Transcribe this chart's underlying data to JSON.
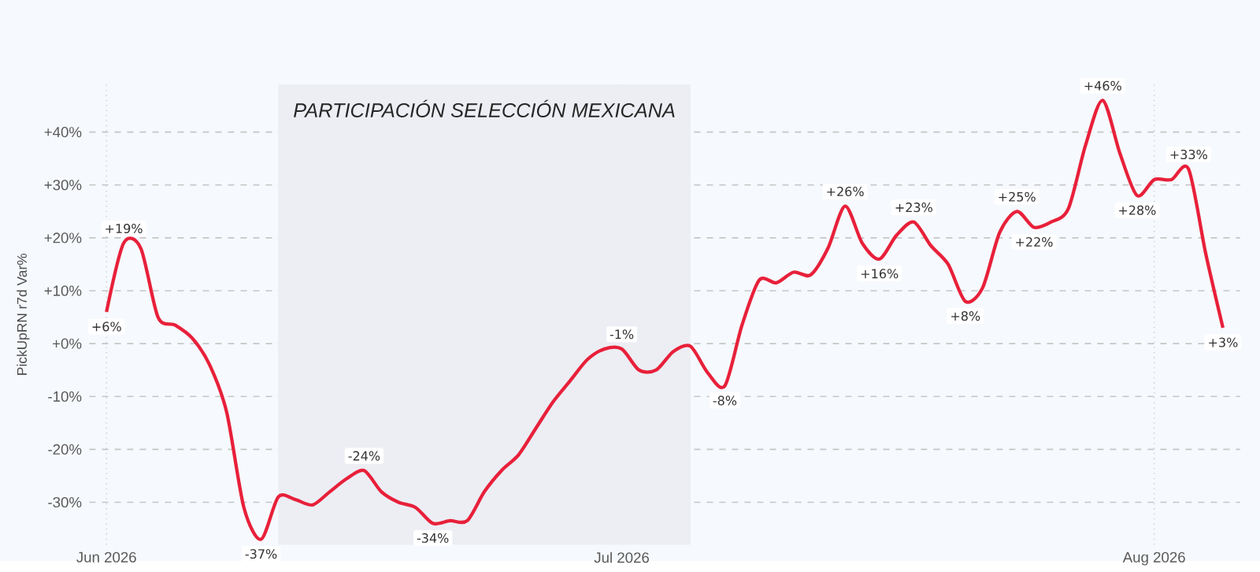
{
  "chart_data": {
    "type": "line",
    "ylabel": "PickUpRN r7d Var%",
    "x": [
      "2026-06-01",
      "2026-06-02",
      "2026-06-03",
      "2026-06-04",
      "2026-06-05",
      "2026-06-06",
      "2026-06-07",
      "2026-06-08",
      "2026-06-09",
      "2026-06-10",
      "2026-06-11",
      "2026-06-12",
      "2026-06-13",
      "2026-06-14",
      "2026-06-15",
      "2026-06-16",
      "2026-06-17",
      "2026-06-18",
      "2026-06-19",
      "2026-06-20",
      "2026-06-21",
      "2026-06-22",
      "2026-06-23",
      "2026-06-24",
      "2026-06-25",
      "2026-06-26",
      "2026-06-27",
      "2026-06-28",
      "2026-06-29",
      "2026-06-30",
      "2026-07-01",
      "2026-07-02",
      "2026-07-03",
      "2026-07-04",
      "2026-07-05",
      "2026-07-06",
      "2026-07-07",
      "2026-07-08",
      "2026-07-09",
      "2026-07-10",
      "2026-07-11",
      "2026-07-12",
      "2026-07-13",
      "2026-07-14",
      "2026-07-15",
      "2026-07-16",
      "2026-07-17",
      "2026-07-18",
      "2026-07-19",
      "2026-07-20",
      "2026-07-21",
      "2026-07-22",
      "2026-07-23",
      "2026-07-24",
      "2026-07-25",
      "2026-07-26",
      "2026-07-27",
      "2026-07-28",
      "2026-07-29",
      "2026-07-30",
      "2026-07-31",
      "2026-08-01",
      "2026-08-02",
      "2026-08-03",
      "2026-08-04",
      "2026-08-05"
    ],
    "series": [
      {
        "color": "#e8203a",
        "values": [
          6,
          19,
          18,
          5,
          3.5,
          1,
          -4,
          -13,
          -31,
          -37,
          -29,
          -29.5,
          -30.5,
          -28,
          -25.5,
          -24,
          -28,
          -30,
          -31,
          -34,
          -33.5,
          -33.5,
          -28,
          -24,
          -21,
          -16,
          -11,
          -7,
          -3,
          -1,
          -1,
          -5,
          -5,
          -1.5,
          -0.5,
          -5.5,
          -8,
          3.5,
          12,
          11.5,
          13.5,
          13,
          18,
          26,
          19,
          16,
          20.5,
          23,
          18.5,
          15,
          8,
          10.5,
          21,
          25,
          22,
          23,
          25.5,
          37.5,
          46,
          36,
          28,
          31,
          31,
          33,
          17,
          3
        ],
        "value_labels": [
          "+6%",
          "+19%",
          null,
          null,
          null,
          null,
          null,
          null,
          null,
          "-37%",
          null,
          null,
          null,
          null,
          null,
          "-24%",
          null,
          null,
          null,
          "-34%",
          null,
          null,
          null,
          null,
          null,
          null,
          null,
          null,
          null,
          null,
          "-1%",
          null,
          null,
          null,
          null,
          null,
          "-8%",
          null,
          null,
          null,
          null,
          null,
          null,
          "+26%",
          null,
          "+16%",
          null,
          "+23%",
          null,
          null,
          "+8%",
          null,
          null,
          "+25%",
          "+22%",
          null,
          null,
          null,
          "+46%",
          null,
          "+28%",
          null,
          null,
          "+33%",
          null,
          "+3%"
        ]
      }
    ],
    "xlim": [
      "2026-05-31",
      "2026-08-06"
    ],
    "xticks": [
      {
        "value": "2026-06-01",
        "label": "Jun 2026"
      },
      {
        "value": "2026-07-01",
        "label": "Jul 2026"
      },
      {
        "value": "2026-08-01",
        "label": "Aug 2026"
      }
    ],
    "ylim": [
      -38,
      49
    ],
    "yticks": [
      {
        "value": -30,
        "label": "-30%"
      },
      {
        "value": -20,
        "label": "-20%"
      },
      {
        "value": -10,
        "label": "-10%"
      },
      {
        "value": 0,
        "label": "+0%"
      },
      {
        "value": 10,
        "label": "+10%"
      },
      {
        "value": 20,
        "label": "+20%"
      },
      {
        "value": 30,
        "label": "+30%"
      },
      {
        "value": 40,
        "label": "+40%"
      }
    ],
    "bands": [
      {
        "axis": "x",
        "from": "2026-06-11",
        "to": "2026-07-05",
        "label": "PARTICIPACIÓN SELECCIÓN MEXICANA",
        "color": "#eceef4"
      }
    ],
    "grid": true,
    "line_style": "solid",
    "marker": "none"
  }
}
